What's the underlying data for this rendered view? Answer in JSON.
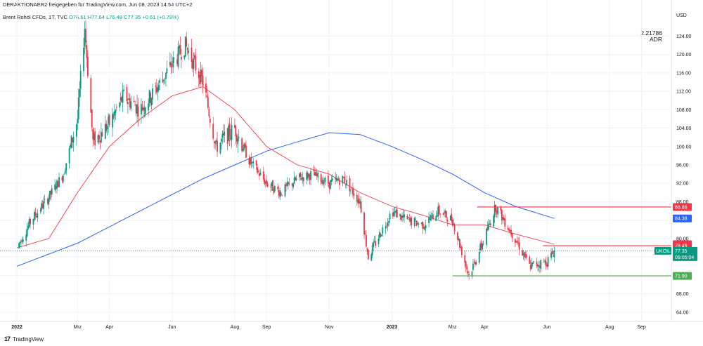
{
  "header": {
    "shared_by": "DERAKTIONAER2 freigegeben für TradingView.com, Jun 08, 2023 14:54 UTC+2"
  },
  "legend": {
    "symbol": "Brent Rohöl CFDs, 1T, TVC",
    "open": "O76.61",
    "high": "H77.64",
    "low": "L76.48",
    "close": "C77.35",
    "change": "+0.61 (+0.79%)"
  },
  "indicator": {
    "value": "2.21786",
    "name": "ADR"
  },
  "footer": {
    "brand": "TradingView"
  },
  "colors": {
    "up": "#089981",
    "down": "#f23645",
    "ma_fast": "#f23645",
    "ma_slow": "#2962ff",
    "grid": "#f0f3fa",
    "resistance": "#f23645",
    "support": "#4caf50"
  },
  "chart_data": {
    "type": "line",
    "title": "Brent Rohöl CFDs, 1T, TVC",
    "currency": "USD",
    "ylim": [
      62,
      130
    ],
    "y_ticks": [
      64,
      68,
      72,
      76,
      80,
      84,
      88,
      92,
      96,
      100,
      104,
      108,
      112,
      116,
      120,
      124
    ],
    "x_ticks": [
      "2022",
      "Mrz",
      "Apr",
      "Jun",
      "Aug",
      "Sep",
      "Nov",
      "2023",
      "Mrz",
      "Apr",
      "Jun",
      "Aug",
      "Sep"
    ],
    "series": [
      {
        "name": "",
        "color": "#089981",
        "x": [
          "2022-01-01",
          "2022-01-15",
          "2022-02-01",
          "2022-02-15",
          "2022-03-01",
          "2022-03-08",
          "2022-03-16",
          "2022-04-01",
          "2022-04-15",
          "2022-05-01",
          "2022-05-15",
          "2022-06-01",
          "2022-06-14",
          "2022-07-01",
          "2022-07-14",
          "2022-08-01",
          "2022-08-15",
          "2022-09-01",
          "2022-09-15",
          "2022-10-01",
          "2022-10-15",
          "2022-11-01",
          "2022-11-15",
          "2022-12-01",
          "2022-12-09",
          "2023-01-01",
          "2023-01-15",
          "2023-02-01",
          "2023-02-15",
          "2023-03-01",
          "2023-03-17",
          "2023-04-01",
          "2023-04-12",
          "2023-05-01",
          "2023-05-15",
          "2023-06-01",
          "2023-06-08"
        ],
        "y": [
          78,
          84,
          89,
          94,
          106,
          126,
          101,
          105,
          111,
          108,
          112,
          118,
          122,
          114,
          100,
          104,
          97,
          92,
          90,
          93,
          94,
          92,
          93,
          88,
          76,
          86,
          84,
          83,
          86,
          84,
          72,
          80,
          87,
          80,
          74,
          75,
          77.35
        ]
      },
      {
        "name": "",
        "color": "#f23645",
        "x": [
          "2022-01-01",
          "2022-02-01",
          "2022-03-01",
          "2022-04-01",
          "2022-05-01",
          "2022-06-01",
          "2022-07-01",
          "2022-08-01",
          "2022-09-01",
          "2022-10-01",
          "2022-11-01",
          "2022-12-01",
          "2023-01-01",
          "2023-02-01",
          "2023-03-01",
          "2023-04-01",
          "2023-05-01",
          "2023-06-08"
        ],
        "y": [
          78,
          80,
          90,
          100,
          106,
          111,
          113,
          108,
          100,
          96,
          94,
          90,
          87,
          85,
          83,
          83,
          81,
          78.77
        ]
      },
      {
        "name": "",
        "color": "#2962ff",
        "x": [
          "2022-01-01",
          "2022-03-01",
          "2022-05-01",
          "2022-07-01",
          "2022-08-01",
          "2022-09-01",
          "2022-10-01",
          "2022-11-01",
          "2022-12-01",
          "2023-01-01",
          "2023-02-01",
          "2023-03-01",
          "2023-04-01",
          "2023-05-01",
          "2023-06-08"
        ],
        "y": [
          74,
          79,
          86,
          93,
          96,
          99,
          101,
          103,
          102.6,
          100,
          97,
          94,
          90,
          87,
          84.38
        ]
      }
    ],
    "horizontal_lines": [
      {
        "value": 86.86,
        "label": "86.86",
        "color": "#f23645"
      },
      {
        "value": 78.46,
        "label": "78.46",
        "color": "#f23645"
      },
      {
        "value": 71.9,
        "label": "71.90",
        "color": "#4caf50"
      }
    ],
    "price_tags": [
      {
        "label": "86.86",
        "value": 86.86,
        "color": "#f23645"
      },
      {
        "label": "84.38",
        "value": 84.38,
        "color": "#2962ff"
      },
      {
        "label": "78.77",
        "value": 78.77,
        "color": "#f23645"
      },
      {
        "label": "78.46",
        "value": 78.46,
        "color": "#f23645"
      },
      {
        "label": "71.90",
        "value": 71.9,
        "color": "#4caf50"
      }
    ],
    "last_price": {
      "symbol": "UKOIL",
      "value": "77.35",
      "countdown": "09:05:04",
      "color": "#089981"
    }
  }
}
